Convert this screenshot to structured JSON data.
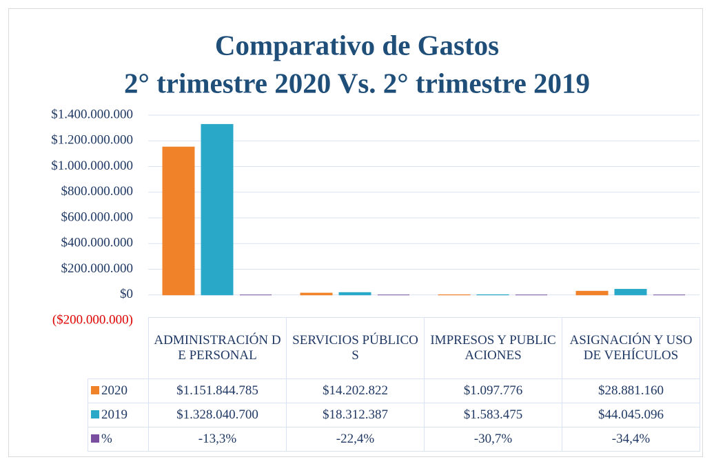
{
  "chart_data": {
    "type": "bar",
    "title": [
      "Comparativo de Gastos",
      "2° trimestre 2020 Vs. 2° trimestre 2019"
    ],
    "categories": [
      "ADMINISTRACIÓN DE PERSONAL",
      "SERVICIOS PÚBLICOS",
      "IMPRESOS Y PUBLICACIONES",
      "ASIGNACIÓN Y USO DE VEHÍCULOS"
    ],
    "series": [
      {
        "name": "2020",
        "color": "#f0822a",
        "values": [
          1151844785,
          14202822,
          1097776,
          28881160
        ],
        "value_labels": [
          "$1.151.844.785",
          "$14.202.822",
          "$1.097.776",
          "$28.881.160"
        ]
      },
      {
        "name": "2019",
        "color": "#2aa8c8",
        "values": [
          1328040700,
          18312387,
          1583475,
          44045096
        ],
        "value_labels": [
          "$1.328.040.700",
          "$18.312.387",
          "$1.583.475",
          "$44.045.096"
        ]
      },
      {
        "name": "%",
        "color": "#7a4fa0",
        "values": [
          -13.3,
          -22.4,
          -30.7,
          -34.4
        ],
        "value_labels": [
          "-13,3%",
          "-22,4%",
          "-30,7%",
          "-34,4%"
        ]
      }
    ],
    "ylim": [
      -200000000,
      1400000000
    ],
    "yticks": [
      {
        "value": -200000000,
        "label": "($200.000.000)"
      },
      {
        "value": 0,
        "label": "$0"
      },
      {
        "value": 200000000,
        "label": "$200.000.000"
      },
      {
        "value": 400000000,
        "label": "$400.000.000"
      },
      {
        "value": 600000000,
        "label": "$600.000.000"
      },
      {
        "value": 800000000,
        "label": "$800.000.000"
      },
      {
        "value": 1000000000,
        "label": "$1.000.000.000"
      },
      {
        "value": 1200000000,
        "label": "$1.200.000.000"
      },
      {
        "value": 1400000000,
        "label": "$1.400.000.000"
      }
    ],
    "negative_color": "#e00000",
    "grid": true
  }
}
